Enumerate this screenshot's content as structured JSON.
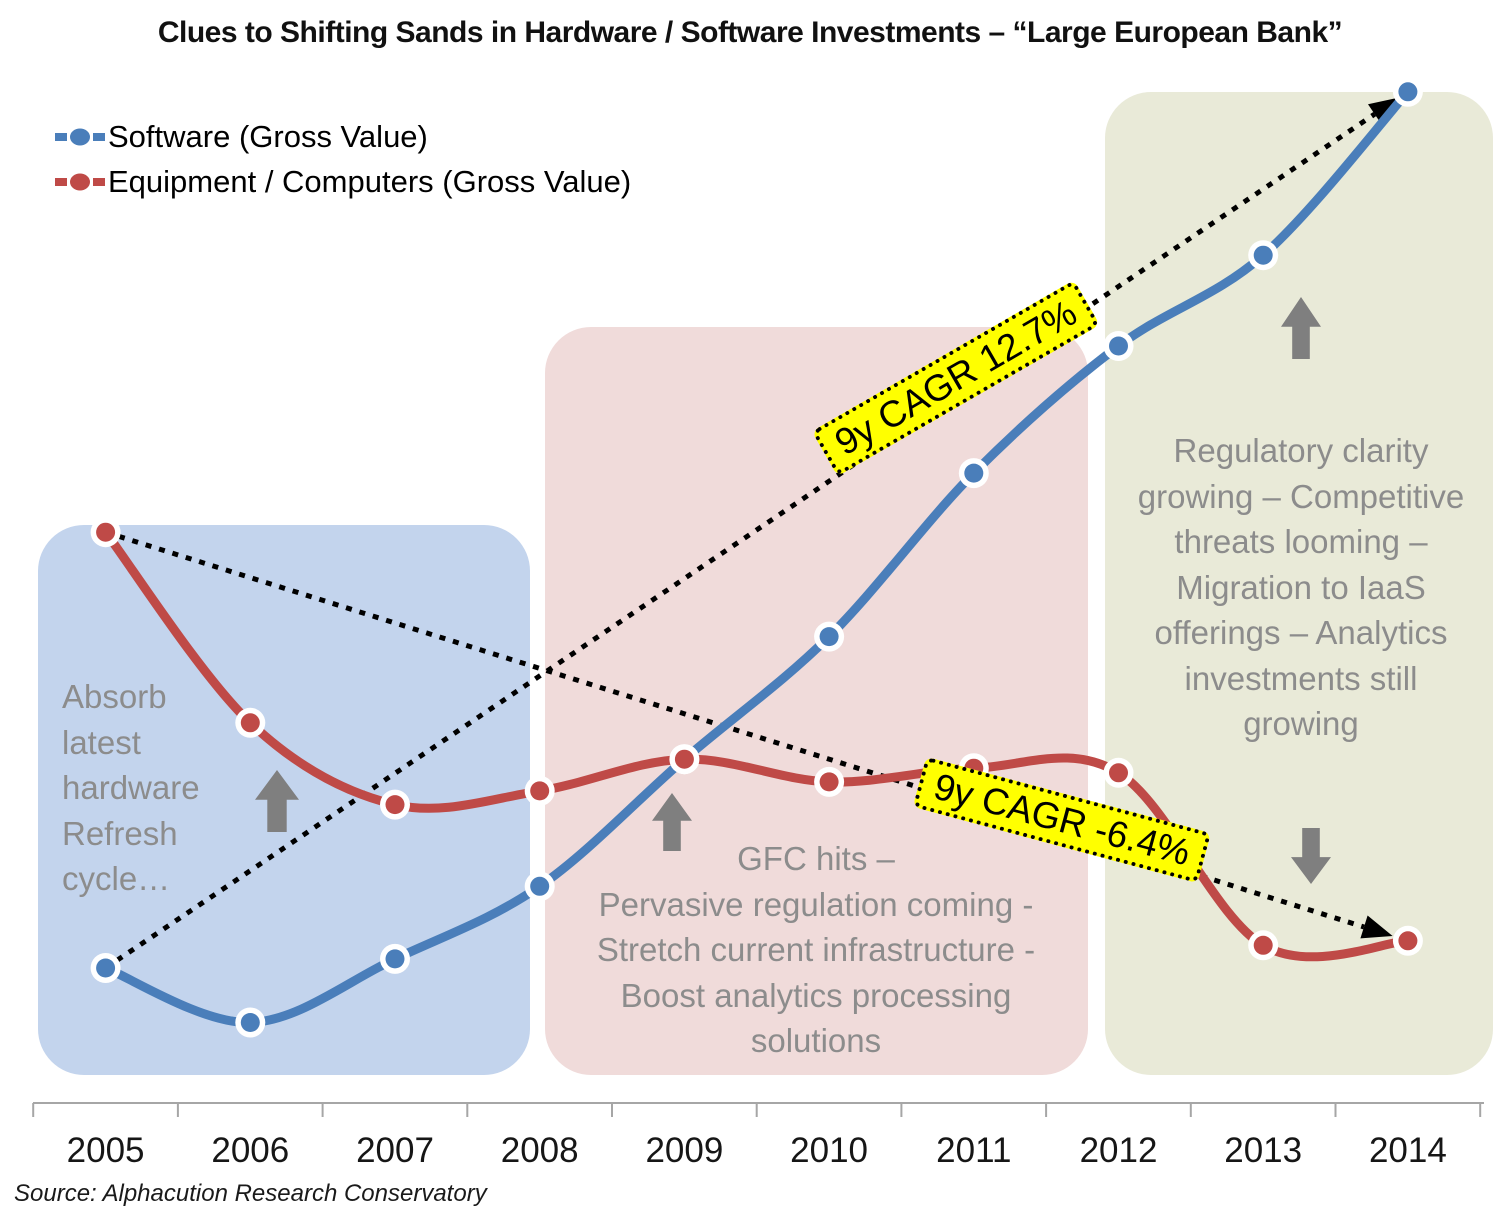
{
  "title": "Clues to Shifting Sands in Hardware / Software Investments – “Large European Bank”",
  "source": "Source: Alphacution Research Conservatory",
  "colors": {
    "software": "#4a7eba",
    "equipment": "#bf4a47",
    "region_blue": "#c3d4ed",
    "region_pink": "#f0dbda",
    "region_green": "#e9ead8",
    "annotation_gray": "#8c8c8c",
    "arrow_gray": "#7f7f7f",
    "cagr_background": "#ffff00",
    "trendline": "#000000",
    "axis": "#a6a6a6"
  },
  "chart_data": {
    "type": "line",
    "categories": [
      "2005",
      "2006",
      "2007",
      "2008",
      "2009",
      "2010",
      "2011",
      "2012",
      "2013",
      "2014"
    ],
    "series": [
      {
        "name": "Software (Gross Value)",
        "color": "#4a7eba",
        "values": [
          100,
          88,
          102,
          118,
          146,
          173,
          209,
          237,
          257,
          293
        ]
      },
      {
        "name": "Equipment / Computers (Gross Value)",
        "color": "#bf4a47",
        "values": [
          196,
          154,
          136,
          139,
          146,
          141,
          144,
          143,
          105,
          106
        ]
      }
    ],
    "value_note": "No y-axis shown in figure; values are indexed estimates (2005 software = 100) read from plot geometry",
    "trendlines": [
      {
        "series": "Software (Gross Value)",
        "label": "9y CAGR 12.7%",
        "from": "2005",
        "to": "2014",
        "style": "dotted-arrow"
      },
      {
        "series": "Equipment / Computers (Gross Value)",
        "label": "9y CAGR -6.4%",
        "from": "2005",
        "to": "2014",
        "style": "dotted-arrow"
      }
    ],
    "xlabel": "",
    "ylabel": "",
    "grid": false,
    "legend_position": "top-left"
  },
  "annotations": {
    "phase1": {
      "years": "2005–2008",
      "text": "Absorb\nlatest\nhardware\nRefresh\ncycle…"
    },
    "phase2": {
      "years": "2008–2012",
      "text": "GFC hits –\nPervasive regulation coming -\nStretch current infrastructure -\nBoost analytics processing\nsolutions"
    },
    "phase3": {
      "years": "2012–2014",
      "text": "Regulatory clarity\ngrowing – Competitive\nthreats looming –\nMigration to IaaS\nofferings – Analytics\ninvestments still\ngrowing"
    }
  },
  "emphasis_arrows": [
    {
      "direction": "up",
      "area": "phase1"
    },
    {
      "direction": "up",
      "area": "phase2"
    },
    {
      "direction": "up",
      "area": "phase3"
    },
    {
      "direction": "down",
      "area": "phase3"
    }
  ]
}
